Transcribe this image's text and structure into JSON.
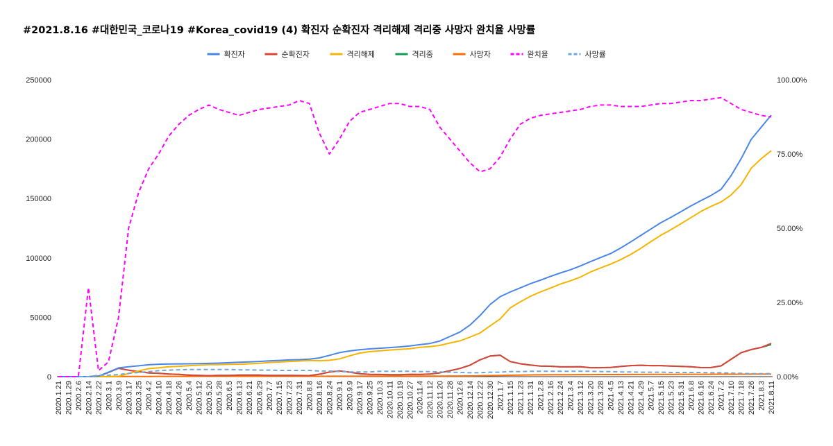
{
  "chart_data": {
    "type": "line",
    "title": "#2021.8.16 #대한민국_코로나19 #Korea_covid19 (4) 확진자 순확진자 격리해제 격리중 사망자 완치율 사망률",
    "xlabel": "",
    "ylabel": "",
    "ylim": [
      0,
      250000
    ],
    "y2lim": [
      0,
      1
    ],
    "y_ticks": [
      "0",
      "50000",
      "100000",
      "150000",
      "200000",
      "250000"
    ],
    "y2_ticks": [
      "0.00%",
      "25.00%",
      "50.00%",
      "75.00%",
      "100.00%"
    ],
    "legend_position": "top",
    "categories": [
      "2020.1.21",
      "2020.1.29",
      "2020.2.6",
      "2020.2.14",
      "2020.2.22",
      "2020.3.1",
      "2020.3.9",
      "2020.3.17",
      "2020.3.25",
      "2020.4.2",
      "2020.4.10",
      "2020.4.18",
      "2020.4.26",
      "2020.5.4",
      "2020.5.12",
      "2020.5.20",
      "2020.5.28",
      "2020.6.5",
      "2020.6.13",
      "2020.6.21",
      "2020.6.29",
      "2020.7.7",
      "2020.7.15",
      "2020.7.23",
      "2020.7.31",
      "2020.8.8",
      "2020.8.16",
      "2020.8.24",
      "2020.9.1",
      "2020.9.9",
      "2020.9.17",
      "2020.9.25",
      "2020.10.3",
      "2020.10.11",
      "2020.10.19",
      "2020.10.27",
      "2020.11.4",
      "2020.11.12",
      "2020.11.20",
      "2020.11.28",
      "2020.12.6",
      "2020.12.14",
      "2020.12.22",
      "2020.12.30",
      "2021.1.7",
      "2021.1.15",
      "2021.1.23",
      "2021.1.31",
      "2021.2.8",
      "2021.2.16",
      "2021.2.24",
      "2021.3.4",
      "2021.3.12",
      "2021.3.20",
      "2021.3.28",
      "2021.4.5",
      "2021.4.13",
      "2021.4.21",
      "2021.4.29",
      "2021.5.7",
      "2021.5.15",
      "2021.5.23",
      "2021.5.31",
      "2021.6.8",
      "2021.6.16",
      "2021.6.24",
      "2021.7.2",
      "2021.7.10",
      "2021.7.18",
      "2021.7.26",
      "2021.8.3",
      "2021.8.11"
    ],
    "series": [
      {
        "name": "확진자",
        "color": "#4a86e8",
        "axis": "left",
        "dash": false,
        "values": [
          1,
          11,
          24,
          28,
          433,
          3736,
          7382,
          8320,
          9137,
          9976,
          10450,
          10653,
          10752,
          10806,
          10962,
          11165,
          11402,
          11719,
          12121,
          12438,
          12800,
          13244,
          13672,
          14092,
          14336,
          14770,
          15761,
          17945,
          20182,
          21588,
          22657,
          23341,
          23889,
          24476,
          25035,
          25836,
          26925,
          27942,
          30017,
          33824,
          37546,
          43484,
          51460,
          60740,
          67358,
          71241,
          74692,
          78205,
          81185,
          84325,
          87324,
          90029,
          93263,
          96849,
          100276,
          103639,
          108269,
          113444,
          118887,
          124269,
          129633,
          134117,
          138898,
          143722,
          148273,
          152545,
          157723,
          169146,
          183445,
          199787,
          209961,
          220182
        ]
      },
      {
        "name": "순확진자",
        "color": "#db4437",
        "axis": "left",
        "dash": false,
        "values": [
          1,
          7,
          14,
          12,
          420,
          3536,
          7019,
          5450,
          4216,
          3125,
          2873,
          2214,
          1843,
          1332,
          1018,
          819,
          1015,
          1046,
          1312,
          1320,
          1284,
          968,
          1041,
          966,
          914,
          888,
          2061,
          3855,
          4867,
          3778,
          2498,
          1931,
          1796,
          1624,
          1664,
          1849,
          1798,
          2214,
          3224,
          4984,
          6865,
          9633,
          14133,
          17374,
          18063,
          12714,
          10857,
          9733,
          8953,
          8736,
          8250,
          8213,
          8298,
          7536,
          7540,
          7695,
          8519,
          9311,
          9601,
          9309,
          9275,
          8956,
          8670,
          8312,
          7597,
          7651,
          9035,
          14632,
          20139,
          22770,
          24584,
          28031
        ]
      },
      {
        "name": "격리해제",
        "color": "#f4b400",
        "axis": "left",
        "dash": false,
        "values": [
          0,
          4,
          10,
          16,
          13,
          196,
          333,
          2612,
          4811,
          6694,
          7447,
          8277,
          8717,
          9232,
          9632,
          10066,
          10080,
          10340,
          10476,
          10778,
          11148,
          11914,
          12268,
          12810,
          13120,
          13577,
          13394,
          13755,
          14935,
          17461,
          19796,
          21027,
          21690,
          22405,
          22922,
          23533,
          24664,
          25268,
          26306,
          28349,
          30167,
          33301,
          36754,
          42754,
          48616,
          57806,
          62968,
          67554,
          71293,
          74549,
          77976,
          80724,
          83855,
          88144,
          91551,
          94749,
          98517,
          102879,
          107998,
          113638,
          119002,
          123690,
          128750,
          133905,
          139135,
          143356,
          147070,
          152917,
          161637,
          175380,
          183533,
          190219
        ]
      },
      {
        "name": "격리중",
        "color": "#0f9d58",
        "axis": "left",
        "dash": false,
        "values": [
          1,
          7,
          14,
          12,
          420,
          3536,
          7019,
          5450,
          4216,
          3125,
          2873,
          2214,
          1843,
          1332,
          1018,
          819,
          1015,
          1046,
          1312,
          1320,
          1284,
          968,
          1041,
          966,
          914,
          888,
          2061,
          3855,
          4867,
          3778,
          2498,
          1931,
          1796,
          1624,
          1664,
          1849,
          1798,
          2214,
          3224,
          4984,
          6865,
          9633,
          14133,
          17374,
          18063,
          12714,
          10857,
          9733,
          8953,
          8736,
          8250,
          8213,
          8298,
          7536,
          7540,
          7695,
          8519,
          9311,
          9601,
          9309,
          9275,
          8956,
          8670,
          8312,
          7597,
          7651,
          9035,
          14632,
          20139,
          22770,
          24584,
          27000
        ]
      },
      {
        "name": "사망자",
        "color": "#ff6d01",
        "axis": "left",
        "dash": false,
        "values": [
          0,
          0,
          0,
          0,
          2,
          17,
          51,
          91,
          126,
          174,
          208,
          232,
          248,
          256,
          263,
          264,
          270,
          277,
          282,
          282,
          282,
          287,
          293,
          299,
          301,
          305,
          306,
          335,
          344,
          349,
          363,
          383,
          434,
          447,
          449,
          454,
          463,
          470,
          487,
          501,
          536,
          583,
          693,
          900,
          1007,
          1196,
          1264,
          1441,
          1501,
          1550,
          1584,
          1618,
          1672,
          1699,
          1737,
          1756,
          1779,
          1811,
          1834,
          1865,
          1898,
          1920,
          1962,
          1999,
          2009,
          2015,
          2024,
          2049,
          2061,
          2077,
          2093,
          2117
        ]
      },
      {
        "name": "완치율",
        "color": "#ff00ff",
        "axis": "right",
        "dash": true,
        "values": [
          0,
          0,
          0,
          0.3,
          0.02,
          0.05,
          0.2,
          0.5,
          0.62,
          0.7,
          0.75,
          0.81,
          0.85,
          0.88,
          0.9,
          0.915,
          0.9,
          0.89,
          0.88,
          0.89,
          0.9,
          0.905,
          0.91,
          0.915,
          0.93,
          0.92,
          0.82,
          0.75,
          0.8,
          0.86,
          0.89,
          0.9,
          0.91,
          0.92,
          0.92,
          0.91,
          0.91,
          0.9,
          0.84,
          0.8,
          0.76,
          0.72,
          0.69,
          0.7,
          0.74,
          0.8,
          0.85,
          0.87,
          0.88,
          0.885,
          0.89,
          0.895,
          0.9,
          0.91,
          0.915,
          0.915,
          0.91,
          0.91,
          0.91,
          0.915,
          0.92,
          0.92,
          0.925,
          0.93,
          0.93,
          0.935,
          0.94,
          0.92,
          0.9,
          0.89,
          0.88,
          0.875
        ]
      },
      {
        "name": "사망률",
        "color": "#6fa8dc",
        "axis": "right",
        "dash": true,
        "values": [
          0,
          0,
          0,
          0,
          0.005,
          0.005,
          0.007,
          0.011,
          0.014,
          0.017,
          0.02,
          0.022,
          0.023,
          0.024,
          0.024,
          0.024,
          0.024,
          0.024,
          0.023,
          0.023,
          0.022,
          0.022,
          0.021,
          0.021,
          0.021,
          0.021,
          0.019,
          0.019,
          0.017,
          0.016,
          0.016,
          0.016,
          0.018,
          0.018,
          0.018,
          0.018,
          0.017,
          0.017,
          0.016,
          0.015,
          0.014,
          0.013,
          0.013,
          0.015,
          0.015,
          0.017,
          0.017,
          0.018,
          0.018,
          0.018,
          0.018,
          0.018,
          0.018,
          0.018,
          0.017,
          0.017,
          0.016,
          0.016,
          0.015,
          0.015,
          0.015,
          0.014,
          0.014,
          0.014,
          0.014,
          0.013,
          0.013,
          0.012,
          0.011,
          0.01,
          0.01,
          0.01
        ]
      }
    ]
  }
}
